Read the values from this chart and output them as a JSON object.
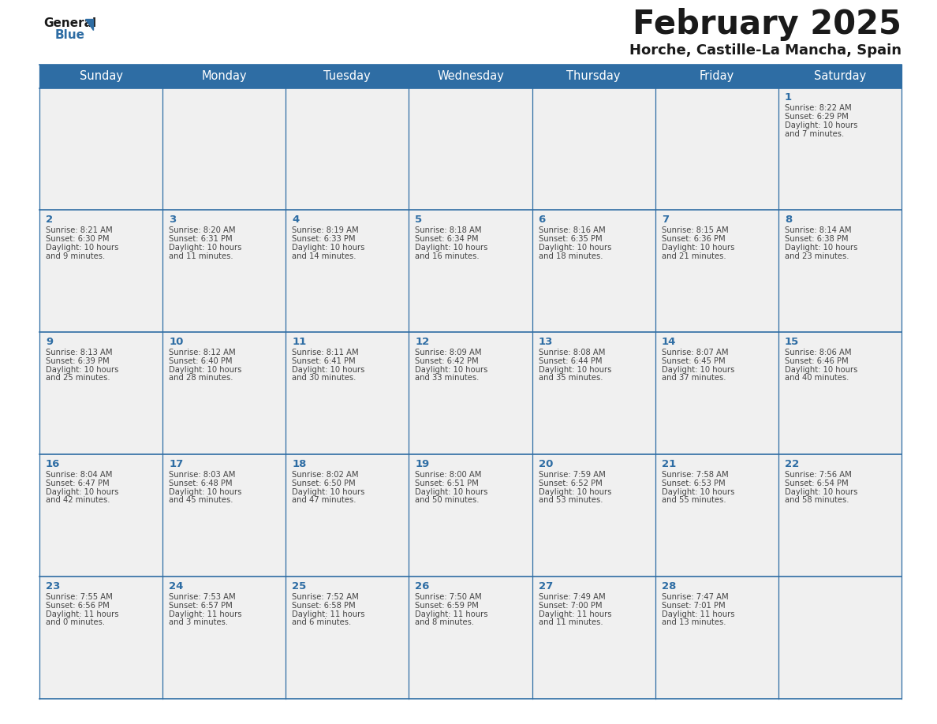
{
  "title": "February 2025",
  "subtitle": "Horche, Castille-La Mancha, Spain",
  "header_color": "#2E6DA4",
  "header_text_color": "#FFFFFF",
  "cell_bg_color": "#F0F0F0",
  "day_number_color": "#2E6DA4",
  "cell_text_color": "#444444",
  "line_color": "#2E6DA4",
  "days_of_week": [
    "Sunday",
    "Monday",
    "Tuesday",
    "Wednesday",
    "Thursday",
    "Friday",
    "Saturday"
  ],
  "weeks": [
    [
      null,
      null,
      null,
      null,
      null,
      null,
      1
    ],
    [
      2,
      3,
      4,
      5,
      6,
      7,
      8
    ],
    [
      9,
      10,
      11,
      12,
      13,
      14,
      15
    ],
    [
      16,
      17,
      18,
      19,
      20,
      21,
      22
    ],
    [
      23,
      24,
      25,
      26,
      27,
      28,
      null
    ]
  ],
  "cell_data": {
    "1": [
      "Sunrise: 8:22 AM",
      "Sunset: 6:29 PM",
      "Daylight: 10 hours",
      "and 7 minutes."
    ],
    "2": [
      "Sunrise: 8:21 AM",
      "Sunset: 6:30 PM",
      "Daylight: 10 hours",
      "and 9 minutes."
    ],
    "3": [
      "Sunrise: 8:20 AM",
      "Sunset: 6:31 PM",
      "Daylight: 10 hours",
      "and 11 minutes."
    ],
    "4": [
      "Sunrise: 8:19 AM",
      "Sunset: 6:33 PM",
      "Daylight: 10 hours",
      "and 14 minutes."
    ],
    "5": [
      "Sunrise: 8:18 AM",
      "Sunset: 6:34 PM",
      "Daylight: 10 hours",
      "and 16 minutes."
    ],
    "6": [
      "Sunrise: 8:16 AM",
      "Sunset: 6:35 PM",
      "Daylight: 10 hours",
      "and 18 minutes."
    ],
    "7": [
      "Sunrise: 8:15 AM",
      "Sunset: 6:36 PM",
      "Daylight: 10 hours",
      "and 21 minutes."
    ],
    "8": [
      "Sunrise: 8:14 AM",
      "Sunset: 6:38 PM",
      "Daylight: 10 hours",
      "and 23 minutes."
    ],
    "9": [
      "Sunrise: 8:13 AM",
      "Sunset: 6:39 PM",
      "Daylight: 10 hours",
      "and 25 minutes."
    ],
    "10": [
      "Sunrise: 8:12 AM",
      "Sunset: 6:40 PM",
      "Daylight: 10 hours",
      "and 28 minutes."
    ],
    "11": [
      "Sunrise: 8:11 AM",
      "Sunset: 6:41 PM",
      "Daylight: 10 hours",
      "and 30 minutes."
    ],
    "12": [
      "Sunrise: 8:09 AM",
      "Sunset: 6:42 PM",
      "Daylight: 10 hours",
      "and 33 minutes."
    ],
    "13": [
      "Sunrise: 8:08 AM",
      "Sunset: 6:44 PM",
      "Daylight: 10 hours",
      "and 35 minutes."
    ],
    "14": [
      "Sunrise: 8:07 AM",
      "Sunset: 6:45 PM",
      "Daylight: 10 hours",
      "and 37 minutes."
    ],
    "15": [
      "Sunrise: 8:06 AM",
      "Sunset: 6:46 PM",
      "Daylight: 10 hours",
      "and 40 minutes."
    ],
    "16": [
      "Sunrise: 8:04 AM",
      "Sunset: 6:47 PM",
      "Daylight: 10 hours",
      "and 42 minutes."
    ],
    "17": [
      "Sunrise: 8:03 AM",
      "Sunset: 6:48 PM",
      "Daylight: 10 hours",
      "and 45 minutes."
    ],
    "18": [
      "Sunrise: 8:02 AM",
      "Sunset: 6:50 PM",
      "Daylight: 10 hours",
      "and 47 minutes."
    ],
    "19": [
      "Sunrise: 8:00 AM",
      "Sunset: 6:51 PM",
      "Daylight: 10 hours",
      "and 50 minutes."
    ],
    "20": [
      "Sunrise: 7:59 AM",
      "Sunset: 6:52 PM",
      "Daylight: 10 hours",
      "and 53 minutes."
    ],
    "21": [
      "Sunrise: 7:58 AM",
      "Sunset: 6:53 PM",
      "Daylight: 10 hours",
      "and 55 minutes."
    ],
    "22": [
      "Sunrise: 7:56 AM",
      "Sunset: 6:54 PM",
      "Daylight: 10 hours",
      "and 58 minutes."
    ],
    "23": [
      "Sunrise: 7:55 AM",
      "Sunset: 6:56 PM",
      "Daylight: 11 hours",
      "and 0 minutes."
    ],
    "24": [
      "Sunrise: 7:53 AM",
      "Sunset: 6:57 PM",
      "Daylight: 11 hours",
      "and 3 minutes."
    ],
    "25": [
      "Sunrise: 7:52 AM",
      "Sunset: 6:58 PM",
      "Daylight: 11 hours",
      "and 6 minutes."
    ],
    "26": [
      "Sunrise: 7:50 AM",
      "Sunset: 6:59 PM",
      "Daylight: 11 hours",
      "and 8 minutes."
    ],
    "27": [
      "Sunrise: 7:49 AM",
      "Sunset: 7:00 PM",
      "Daylight: 11 hours",
      "and 11 minutes."
    ],
    "28": [
      "Sunrise: 7:47 AM",
      "Sunset: 7:01 PM",
      "Daylight: 11 hours",
      "and 13 minutes."
    ]
  }
}
